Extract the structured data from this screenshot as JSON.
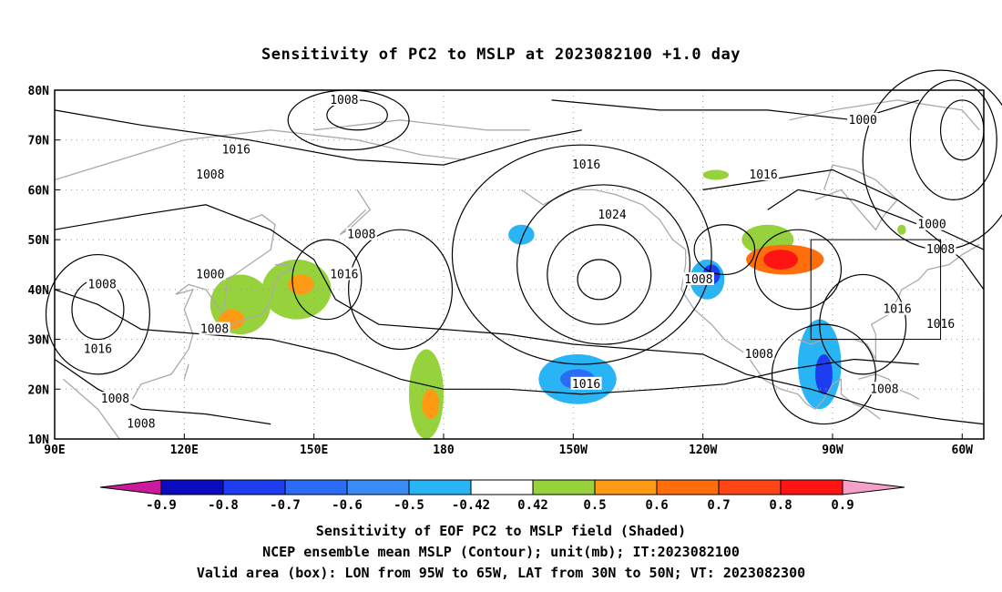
{
  "title": "Sensitivity of PC2 to MSLP at 2023082100 +1.0 day",
  "axes": {
    "lat_ticks": [
      "80N",
      "70N",
      "60N",
      "50N",
      "40N",
      "30N",
      "20N",
      "10N"
    ],
    "lon_ticks": [
      "90E",
      "120E",
      "150E",
      "180",
      "150W",
      "120W",
      "90W",
      "60W"
    ],
    "lon_range": [
      90,
      305
    ],
    "lat_range": [
      10,
      80
    ]
  },
  "contour_labels": [
    {
      "text": "1008",
      "lon": 157,
      "lat": 78
    },
    {
      "text": "1016",
      "lon": 132,
      "lat": 68
    },
    {
      "text": "1008",
      "lon": 126,
      "lat": 63
    },
    {
      "text": "1016",
      "lon": 213,
      "lat": 65
    },
    {
      "text": "1016",
      "lon": 254,
      "lat": 63
    },
    {
      "text": "1000",
      "lon": 277,
      "lat": 74
    },
    {
      "text": "1024",
      "lon": 219,
      "lat": 55
    },
    {
      "text": "1008",
      "lon": 161,
      "lat": 51
    },
    {
      "text": "1000",
      "lon": 126,
      "lat": 43
    },
    {
      "text": "1016",
      "lon": 157,
      "lat": 43
    },
    {
      "text": "1008",
      "lon": 101,
      "lat": 41
    },
    {
      "text": "1008",
      "lon": 239,
      "lat": 42
    },
    {
      "text": "1000",
      "lon": 293,
      "lat": 53
    },
    {
      "text": "1008",
      "lon": 295,
      "lat": 48
    },
    {
      "text": "1016",
      "lon": 285,
      "lat": 36
    },
    {
      "text": "1016",
      "lon": 295,
      "lat": 33
    },
    {
      "text": "1008",
      "lon": 127,
      "lat": 32
    },
    {
      "text": "1016",
      "lon": 100,
      "lat": 28
    },
    {
      "text": "1008",
      "lon": 253,
      "lat": 27
    },
    {
      "text": "1016",
      "lon": 213,
      "lat": 21
    },
    {
      "text": "1008",
      "lon": 282,
      "lat": 20
    },
    {
      "text": "1008",
      "lon": 104,
      "lat": 18
    },
    {
      "text": "1008",
      "lon": 110,
      "lat": 13
    }
  ],
  "valid_box": {
    "lon": [
      265,
      295
    ],
    "lat": [
      30,
      50
    ]
  },
  "colorbar": {
    "labels": [
      "-0.9",
      "-0.8",
      "-0.7",
      "-0.6",
      "-0.5",
      "-0.42",
      "0.42",
      "0.5",
      "0.6",
      "0.7",
      "0.8",
      "0.9"
    ],
    "colors": [
      "#0a0abf",
      "#1e3cf0",
      "#2a6cf5",
      "#3c8cf7",
      "#28b4f5",
      "#ffffff",
      "#96d23c",
      "#ff9a14",
      "#ff6e0a",
      "#ff4614",
      "#ff1414"
    ],
    "low_extend_color": "#cc1a9c",
    "high_extend_color": "#f5a0c8"
  },
  "shading": [
    {
      "c": "#96d23c",
      "lon": 133,
      "lat": 37,
      "rx": 7,
      "ry": 6
    },
    {
      "c": "#96d23c",
      "lon": 146,
      "lat": 40,
      "rx": 8,
      "ry": 6
    },
    {
      "c": "#ff9a14",
      "lon": 131,
      "lat": 34,
      "rx": 3,
      "ry": 2
    },
    {
      "c": "#ff9a14",
      "lon": 147,
      "lat": 41,
      "rx": 3,
      "ry": 2
    },
    {
      "c": "#96d23c",
      "lon": 176,
      "lat": 19,
      "rx": 4,
      "ry": 9
    },
    {
      "c": "#ff9a14",
      "lon": 177,
      "lat": 17,
      "rx": 2,
      "ry": 3
    },
    {
      "c": "#96d23c",
      "lon": 255,
      "lat": 50,
      "rx": 6,
      "ry": 3
    },
    {
      "c": "#ff6e0a",
      "lon": 259,
      "lat": 46,
      "rx": 9,
      "ry": 3
    },
    {
      "c": "#ff1414",
      "lon": 258,
      "lat": 46,
      "rx": 4,
      "ry": 2
    },
    {
      "c": "#96d23c",
      "lon": 243,
      "lat": 63,
      "rx": 3,
      "ry": 1
    },
    {
      "c": "#28b4f5",
      "lon": 211,
      "lat": 22,
      "rx": 9,
      "ry": 5
    },
    {
      "c": "#2a6cf5",
      "lon": 211,
      "lat": 22,
      "rx": 4,
      "ry": 2
    },
    {
      "c": "#28b4f5",
      "lon": 241,
      "lat": 42,
      "rx": 4,
      "ry": 4
    },
    {
      "c": "#1e3cf0",
      "lon": 242,
      "lat": 43,
      "rx": 2,
      "ry": 2
    },
    {
      "c": "#28b4f5",
      "lon": 267,
      "lat": 25,
      "rx": 5,
      "ry": 9
    },
    {
      "c": "#1e3cf0",
      "lon": 268,
      "lat": 23,
      "rx": 2,
      "ry": 4
    },
    {
      "c": "#28b4f5",
      "lon": 198,
      "lat": 51,
      "rx": 3,
      "ry": 2
    },
    {
      "c": "#96d23c",
      "lon": 286,
      "lat": 52,
      "rx": 1,
      "ry": 1
    }
  ],
  "captions": [
    "Sensitivity of EOF PC2 to MSLP field (Shaded)",
    "NCEP ensemble mean MSLP (Contour); unit(mb); IT:2023082100",
    "Valid area (box): LON from 95W to 65W, LAT from 30N to 50N; VT: 2023082300"
  ]
}
